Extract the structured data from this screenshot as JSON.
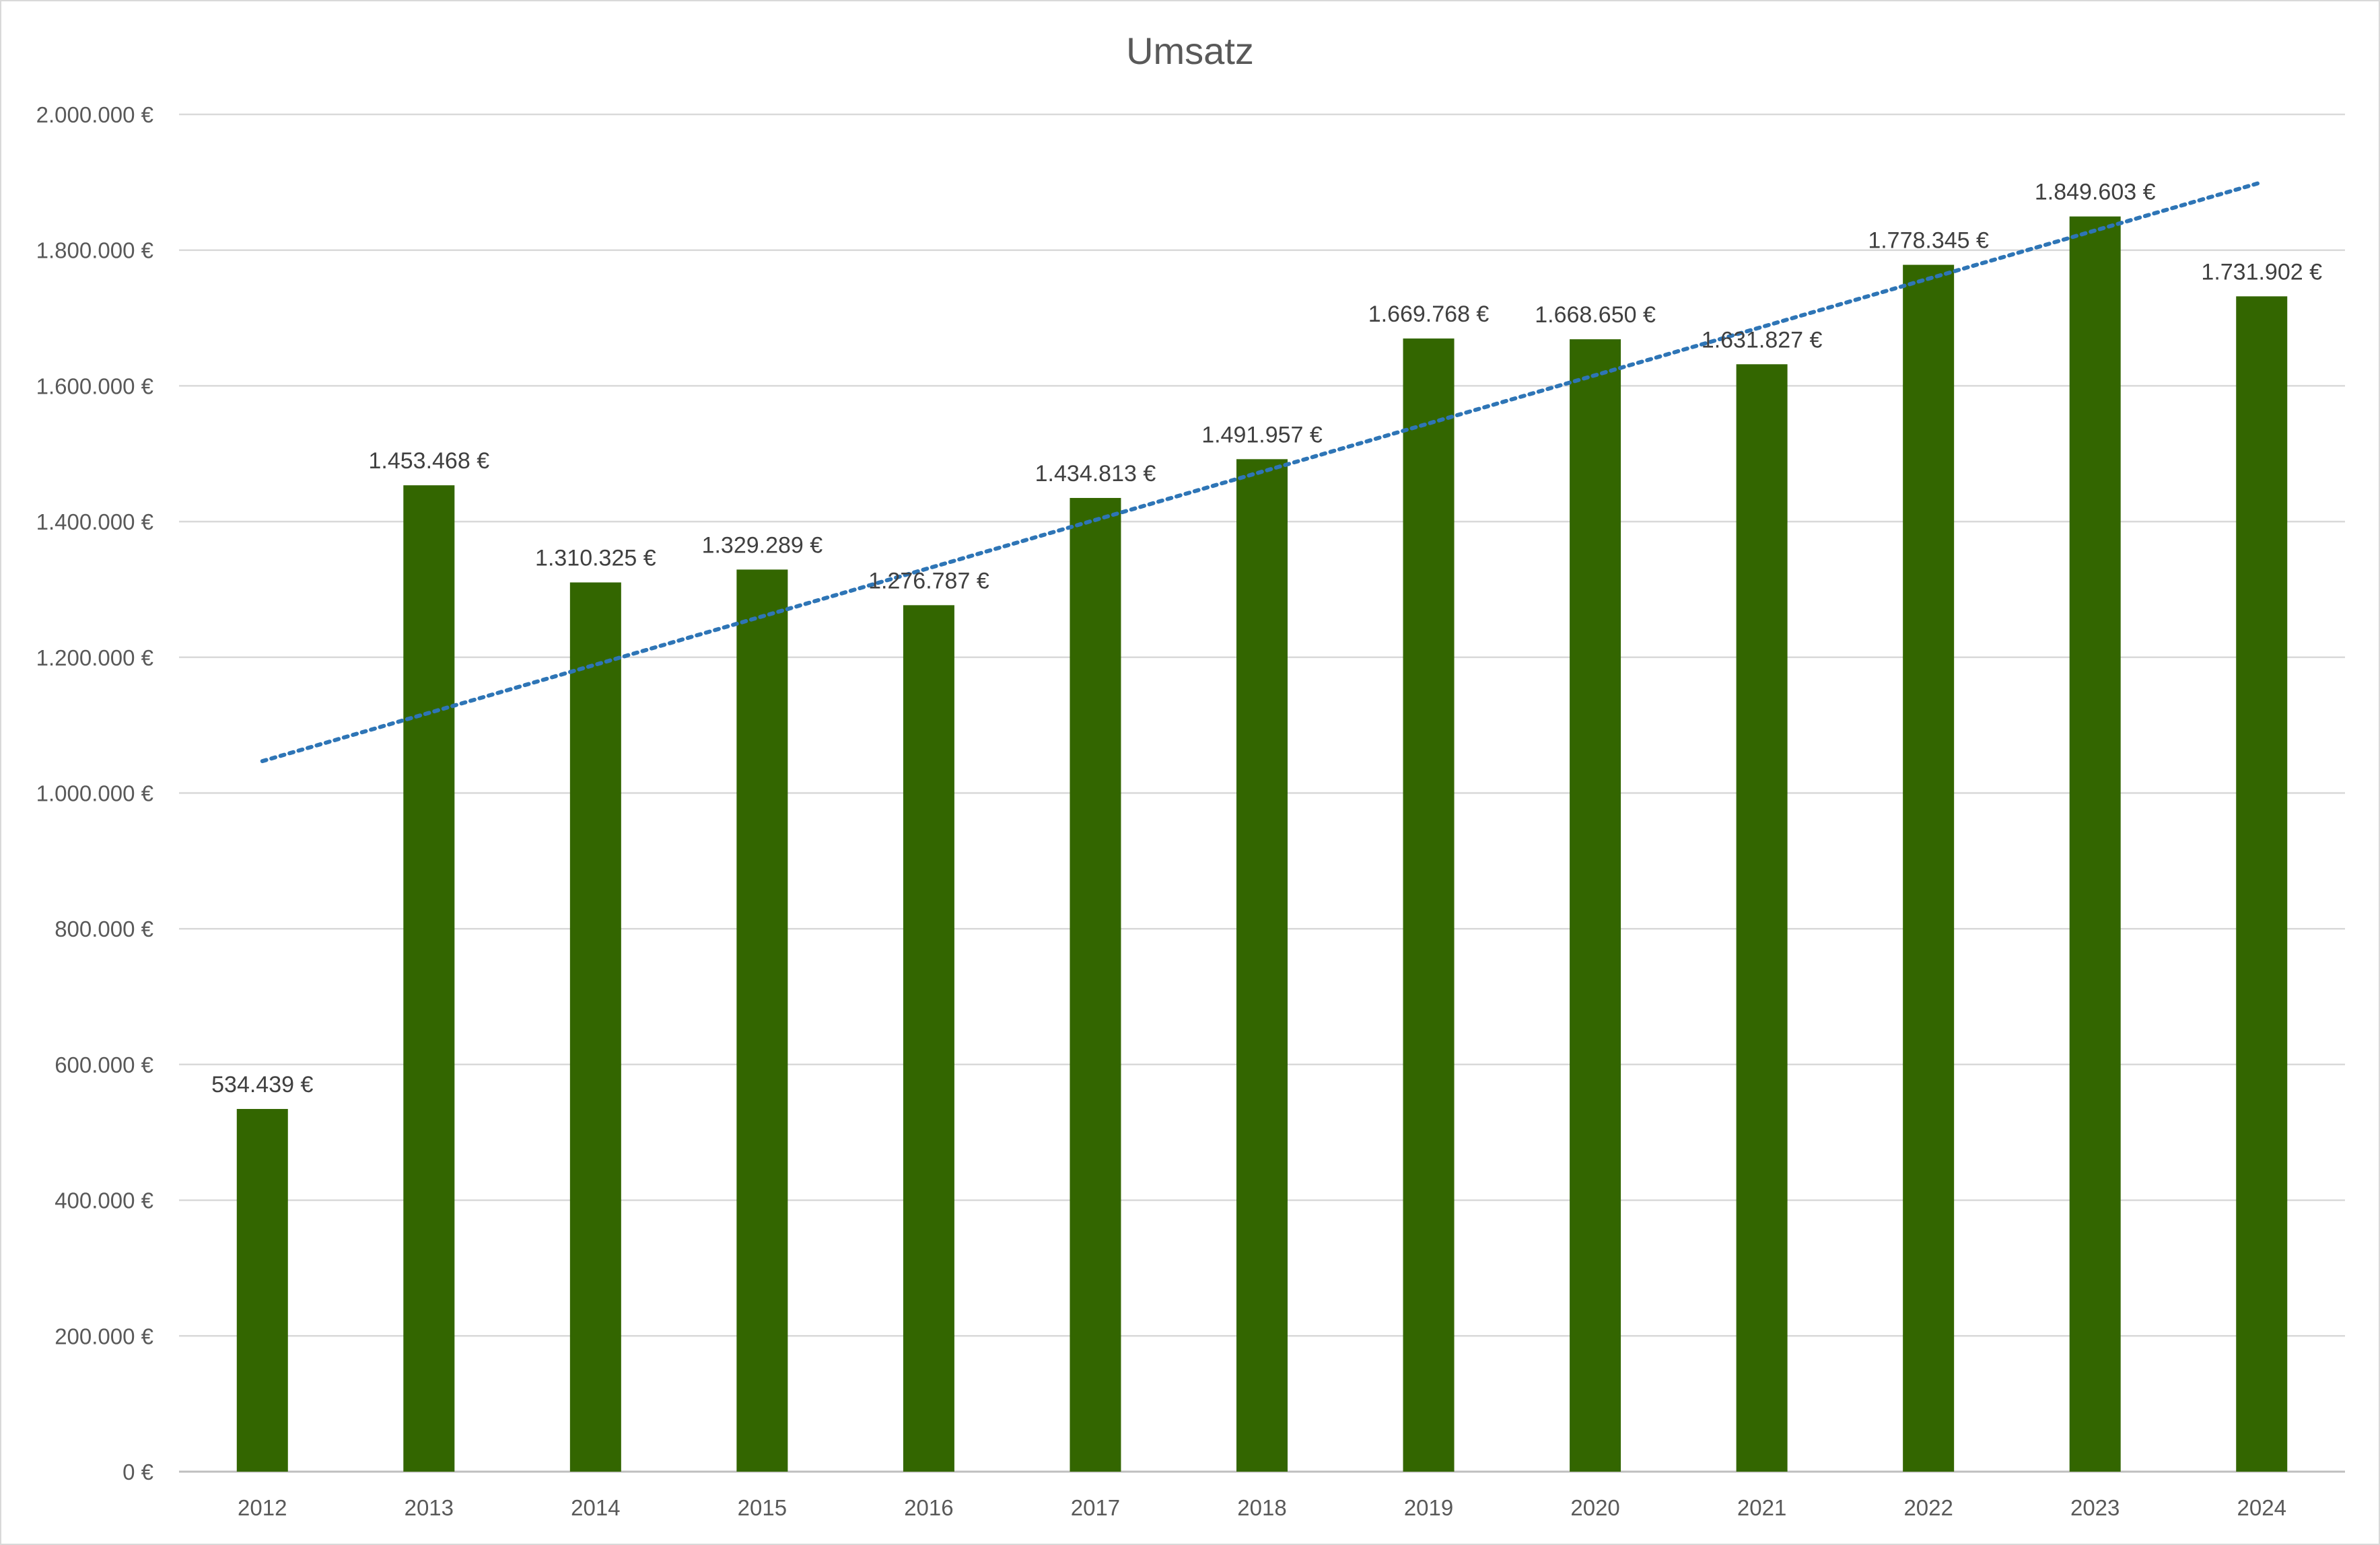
{
  "chart_data": {
    "type": "bar",
    "title": "Umsatz",
    "xlabel": "",
    "ylabel": "",
    "categories": [
      "2012",
      "2013",
      "2014",
      "2015",
      "2016",
      "2017",
      "2018",
      "2019",
      "2020",
      "2021",
      "2022",
      "2023",
      "2024"
    ],
    "values": [
      534439,
      1453468,
      1310325,
      1329289,
      1276787,
      1434813,
      1491957,
      1669768,
      1668650,
      1631827,
      1778345,
      1849603,
      1731902
    ],
    "value_labels": [
      "534.439 €",
      "1.453.468 €",
      "1.310.325 €",
      "1.329.289 €",
      "1.276.787 €",
      "1.434.813 €",
      "1.491.957 €",
      "1.669.768 €",
      "1.668.650 €",
      "1.631.827 €",
      "1.778.345 €",
      "1.849.603 €",
      "1.731.902 €"
    ],
    "ylim": [
      0,
      2000000
    ],
    "y_ticks": [
      0,
      200000,
      400000,
      600000,
      800000,
      1000000,
      1200000,
      1400000,
      1600000,
      1800000,
      2000000
    ],
    "y_tick_labels": [
      "0 €",
      "200.000 €",
      "400.000 €",
      "600.000 €",
      "800.000 €",
      "1.000.000 €",
      "1.200.000 €",
      "1.400.000 €",
      "1.600.000 €",
      "1.800.000 €",
      "2.000.000 €"
    ],
    "grid": true,
    "legend": "none",
    "trendline": {
      "type": "linear",
      "style": "dotted",
      "start_value": 1047000,
      "end_value": 1900000
    },
    "colors": {
      "bar": "#336600",
      "trendline": "#2e75b6",
      "gridline": "#d9d9d9",
      "text": "#595959"
    }
  }
}
